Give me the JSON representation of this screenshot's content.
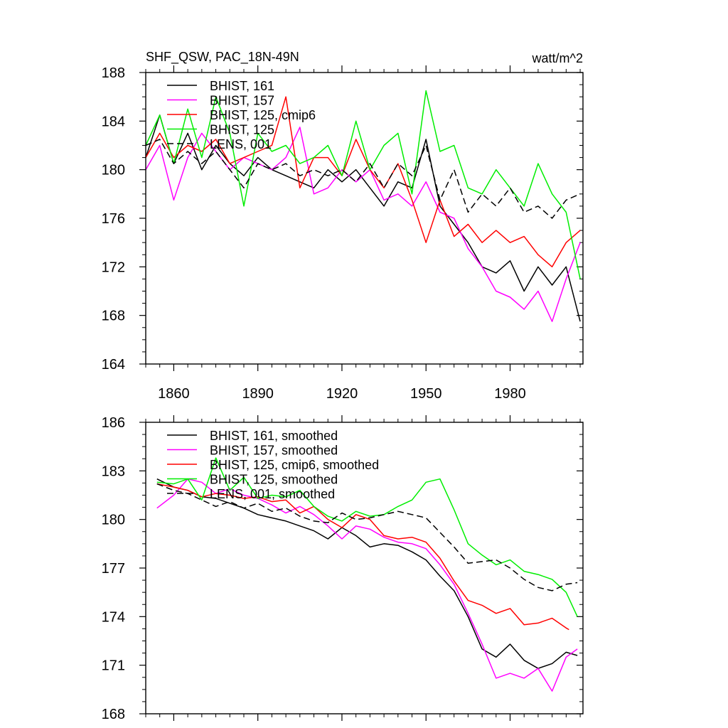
{
  "chart_data": [
    {
      "type": "line",
      "title": "SHF_QSW, PAC_18N-49N",
      "units": "watt/m^2",
      "xlim": [
        1850,
        2006
      ],
      "ylim": [
        164,
        188
      ],
      "xticks": [
        1860,
        1890,
        1920,
        1950,
        1980
      ],
      "yticks": [
        164,
        168,
        172,
        176,
        180,
        184,
        188
      ],
      "legend_location": "top-left",
      "grid": false,
      "series": [
        {
          "name": "BHIST, 161",
          "color": "#000000",
          "dash": "solid",
          "x": [
            1850,
            1855,
            1860,
            1865,
            1870,
            1875,
            1880,
            1885,
            1890,
            1895,
            1900,
            1905,
            1910,
            1915,
            1920,
            1925,
            1930,
            1935,
            1940,
            1945,
            1950,
            1955,
            1960,
            1965,
            1970,
            1975,
            1980,
            1985,
            1990,
            1995,
            2000,
            2005
          ],
          "y": [
            181,
            184.5,
            180.5,
            183,
            180,
            182,
            180.5,
            179.5,
            181,
            180,
            179.5,
            179,
            178.5,
            180,
            179,
            180,
            178.5,
            177,
            179,
            178.5,
            182.5,
            177,
            175.5,
            174,
            172,
            171.5,
            172.5,
            170,
            172,
            170.5,
            172,
            167.5
          ]
        },
        {
          "name": "BHIST, 157",
          "color": "#ff00ff",
          "dash": "solid",
          "x": [
            1850,
            1855,
            1860,
            1865,
            1870,
            1875,
            1880,
            1885,
            1890,
            1895,
            1900,
            1905,
            1910,
            1915,
            1920,
            1925,
            1930,
            1935,
            1940,
            1945,
            1950,
            1955,
            1960,
            1965,
            1970,
            1975,
            1980,
            1985,
            1990,
            1995,
            2000,
            2005
          ],
          "y": [
            180,
            182,
            177.5,
            181,
            183,
            181.5,
            180,
            181,
            180.5,
            180,
            181,
            183.5,
            178,
            178.5,
            180,
            179,
            180,
            177.5,
            178,
            177,
            179,
            176.5,
            176,
            173.5,
            172,
            170,
            169.5,
            168.5,
            170,
            167.5,
            171,
            174
          ]
        },
        {
          "name": "BHIST, 125, cmip6",
          "color": "#ff0000",
          "dash": "solid",
          "x": [
            1850,
            1855,
            1860,
            1865,
            1870,
            1875,
            1880,
            1885,
            1890,
            1895,
            1900,
            1905,
            1910,
            1915,
            1920,
            1925,
            1930,
            1935,
            1940,
            1945,
            1950,
            1955,
            1960,
            1965,
            1970,
            1975,
            1980,
            1985,
            1990,
            1995,
            2000,
            2005
          ],
          "y": [
            181,
            183,
            181,
            182,
            181.5,
            182.5,
            180.5,
            181,
            181.5,
            182,
            186,
            178.5,
            181,
            181,
            179.5,
            182.5,
            180,
            178.5,
            180.5,
            177.5,
            174,
            177.5,
            174.5,
            175.5,
            174,
            175,
            174,
            174.5,
            173,
            172,
            174,
            175
          ]
        },
        {
          "name": "BHIST, 125",
          "color": "#00ee00",
          "dash": "solid",
          "x": [
            1850,
            1855,
            1860,
            1865,
            1870,
            1875,
            1880,
            1885,
            1890,
            1895,
            1900,
            1905,
            1910,
            1915,
            1920,
            1925,
            1930,
            1935,
            1940,
            1945,
            1950,
            1955,
            1960,
            1965,
            1970,
            1975,
            1980,
            1985,
            1990,
            1995,
            2000,
            2005
          ],
          "y": [
            182,
            184.5,
            180.5,
            185,
            181,
            186,
            183,
            177,
            183,
            181.5,
            182,
            180.5,
            181,
            182,
            179.5,
            184,
            180,
            182,
            183,
            178,
            186.5,
            181.5,
            182,
            178.5,
            178,
            180,
            178.5,
            177,
            180.5,
            178,
            176.5,
            171
          ]
        },
        {
          "name": "LENS, 001",
          "color": "#000000",
          "dash": "dashed",
          "x": [
            1850,
            1855,
            1860,
            1865,
            1870,
            1875,
            1880,
            1885,
            1890,
            1895,
            1900,
            1905,
            1910,
            1915,
            1920,
            1925,
            1930,
            1935,
            1940,
            1945,
            1950,
            1955,
            1960,
            1965,
            1970,
            1975,
            1980,
            1985,
            1990,
            1995,
            2000,
            2005
          ],
          "y": [
            182,
            182.5,
            180.5,
            181.5,
            180.5,
            181.5,
            180,
            178.5,
            180.5,
            180,
            180.5,
            179.5,
            180,
            179.5,
            180,
            179,
            180.5,
            178.5,
            180.5,
            179.5,
            182,
            177.5,
            180,
            176.5,
            178,
            177,
            178.5,
            176.5,
            177,
            176,
            177.5,
            178
          ]
        }
      ]
    },
    {
      "type": "line",
      "title": "",
      "xlim": [
        1850,
        2006
      ],
      "ylim": [
        168,
        186
      ],
      "xticks": [
        1860,
        1890,
        1920,
        1950,
        1980
      ],
      "yticks": [
        168,
        171,
        174,
        177,
        180,
        183,
        186
      ],
      "legend_location": "top-left",
      "grid": false,
      "series": [
        {
          "name": "BHIST, 161, smoothed",
          "color": "#000000",
          "dash": "solid",
          "x": [
            1854,
            1860,
            1865,
            1870,
            1875,
            1880,
            1885,
            1890,
            1895,
            1900,
            1905,
            1910,
            1915,
            1920,
            1925,
            1930,
            1935,
            1940,
            1945,
            1950,
            1955,
            1960,
            1965,
            1970,
            1975,
            1980,
            1985,
            1990,
            1995,
            2000,
            2004
          ],
          "y": [
            182.5,
            182,
            181.8,
            181.4,
            181.3,
            181,
            180.7,
            180.3,
            180.1,
            179.9,
            179.6,
            179.3,
            178.8,
            179.5,
            179,
            178.3,
            178.5,
            178.4,
            178,
            177.5,
            176.5,
            175.6,
            174,
            172,
            171.5,
            172.3,
            171.3,
            170.8,
            171.1,
            171.8,
            171.6
          ]
        },
        {
          "name": "BHIST, 157, smoothed",
          "color": "#ff00ff",
          "dash": "solid",
          "x": [
            1854,
            1860,
            1865,
            1870,
            1875,
            1880,
            1885,
            1890,
            1895,
            1900,
            1905,
            1910,
            1915,
            1920,
            1925,
            1930,
            1935,
            1940,
            1945,
            1950,
            1955,
            1960,
            1965,
            1970,
            1975,
            1980,
            1985,
            1990,
            1995,
            2000,
            2004
          ],
          "y": [
            180.7,
            181.5,
            182.5,
            182.3,
            181.6,
            181.9,
            181.5,
            181.3,
            180.9,
            180.4,
            180.8,
            180.3,
            179.6,
            178.8,
            179.6,
            179.4,
            178.9,
            178.6,
            178.5,
            178.2,
            177.2,
            176,
            174.2,
            172.3,
            170.2,
            170.5,
            170.2,
            170.8,
            169.4,
            171.5,
            172
          ]
        },
        {
          "name": "BHIST, 125, cmip6, smoothed",
          "color": "#ff0000",
          "dash": "solid",
          "x": [
            1854,
            1860,
            1865,
            1870,
            1875,
            1880,
            1885,
            1890,
            1895,
            1900,
            1905,
            1910,
            1915,
            1920,
            1925,
            1930,
            1935,
            1940,
            1945,
            1950,
            1955,
            1960,
            1965,
            1970,
            1975,
            1980,
            1985,
            1990,
            1995,
            2000,
            2001
          ],
          "y": [
            182.2,
            182,
            181.8,
            181.4,
            181.6,
            181.5,
            181.3,
            181.4,
            181.1,
            181.2,
            180.4,
            180.8,
            180,
            179.5,
            180.3,
            180,
            179,
            178.8,
            178.9,
            178.6,
            177.6,
            176.2,
            175,
            174.7,
            174.2,
            174.5,
            173.5,
            173.6,
            173.9,
            173.3,
            173.2
          ]
        },
        {
          "name": "BHIST, 125, smoothed",
          "color": "#00ee00",
          "dash": "solid",
          "x": [
            1854,
            1860,
            1865,
            1870,
            1875,
            1880,
            1885,
            1890,
            1895,
            1900,
            1905,
            1910,
            1915,
            1920,
            1925,
            1930,
            1935,
            1940,
            1945,
            1950,
            1955,
            1960,
            1965,
            1970,
            1975,
            1980,
            1985,
            1990,
            1995,
            2000,
            2004
          ],
          "y": [
            182.3,
            182.2,
            182.5,
            181.2,
            183.8,
            181.8,
            182.6,
            181.3,
            181.5,
            181.4,
            181.8,
            180.8,
            180.2,
            179.9,
            180.5,
            180.2,
            180.3,
            180.8,
            181.2,
            182.3,
            182.5,
            180.6,
            178.5,
            177.8,
            177.2,
            177.5,
            176.8,
            176.6,
            176.3,
            175.5,
            174
          ]
        },
        {
          "name": "LENS, 001, smoothed",
          "color": "#000000",
          "dash": "dashed",
          "x": [
            1854,
            1860,
            1865,
            1870,
            1875,
            1880,
            1885,
            1890,
            1895,
            1900,
            1905,
            1910,
            1915,
            1920,
            1925,
            1930,
            1935,
            1940,
            1945,
            1950,
            1955,
            1960,
            1965,
            1970,
            1975,
            1980,
            1985,
            1990,
            1995,
            2000,
            2004
          ],
          "y": [
            182.2,
            181.8,
            181.6,
            181.2,
            180.8,
            181.1,
            180.7,
            181,
            180.5,
            180.7,
            180.2,
            179.9,
            179.8,
            180.4,
            180,
            180.1,
            180.3,
            180.5,
            180.3,
            180.1,
            179.2,
            178.3,
            177.3,
            177.4,
            177.5,
            177,
            176.3,
            175.8,
            175.6,
            176,
            176.1
          ]
        }
      ]
    }
  ]
}
